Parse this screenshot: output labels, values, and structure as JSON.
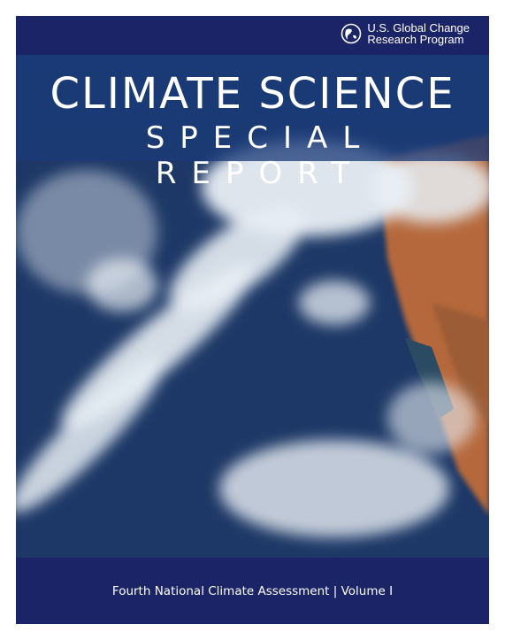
{
  "header": {
    "organization": [
      "U.S. Global Change",
      "Research Program"
    ]
  },
  "title": {
    "line1": "CLIMATE SCIENCE",
    "line2": "SPECIAL REPORT"
  },
  "footer": {
    "text": "Fourth National Climate Assessment | Volume I"
  }
}
